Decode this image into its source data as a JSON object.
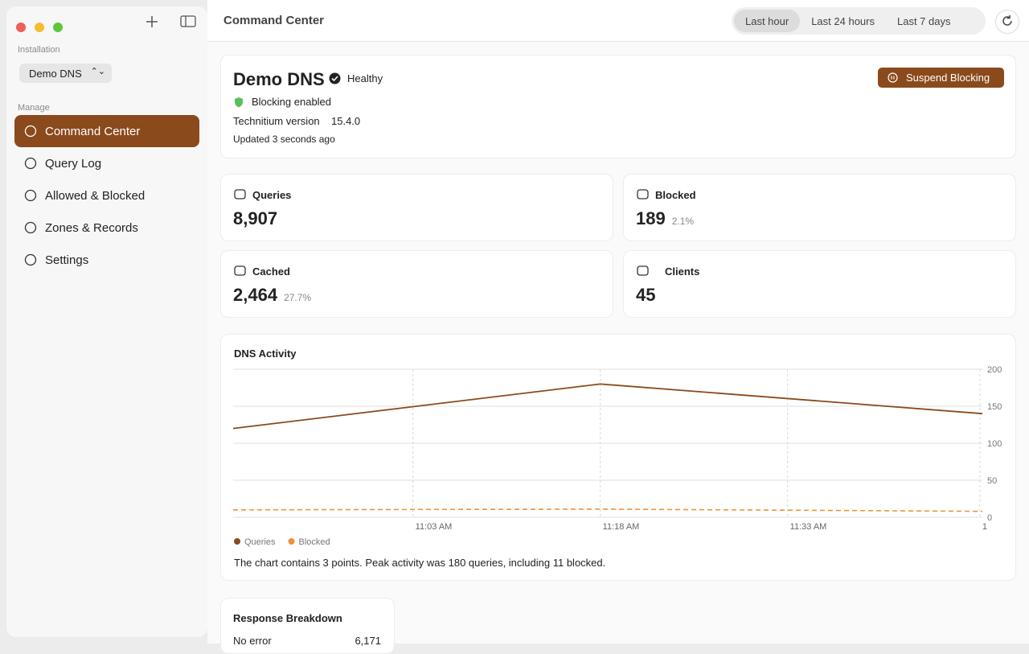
{
  "window": {
    "title": "Command Center"
  },
  "toolbar": {
    "ranges": [
      "Last hour",
      "Last 24 hours",
      "Last 7 days"
    ],
    "selected": 0
  },
  "sidebar": {
    "installation_label": "Installation",
    "installation": "Demo DNS",
    "section": "Manage",
    "items": [
      "Command Center",
      "Query Log",
      "Allowed & Blocked",
      "Zones & Records",
      "Settings"
    ],
    "selected": 0
  },
  "header": {
    "name": "Demo DNS",
    "status": "Healthy",
    "blocking": "Blocking enabled",
    "version_label": "Technitium version",
    "version": "15.4.0",
    "updated": "Updated 3 seconds ago",
    "action": "Suspend Blocking"
  },
  "stats": [
    {
      "label": "Queries",
      "value": "8,907"
    },
    {
      "label": "Blocked",
      "value": "189",
      "share": "2.1%"
    },
    {
      "label": "Cached",
      "value": "2,464",
      "share": "27.7%"
    },
    {
      "label": "Clients",
      "value": "45"
    }
  ],
  "chart_data": {
    "type": "line",
    "title": "DNS Activity",
    "x": [
      648.6,
      678,
      708.6
    ],
    "xlim": [
      648.6,
      708.6
    ],
    "xticks": [
      {
        "value": 663,
        "label": "11:03 AM"
      },
      {
        "value": 678,
        "label": "11:18 AM"
      },
      {
        "value": 693,
        "label": "11:33 AM"
      },
      {
        "value": 708.4,
        "label": "1"
      }
    ],
    "ylim": [
      0,
      200
    ],
    "yticks": [
      0,
      50,
      100,
      150,
      200
    ],
    "grid": true,
    "series": [
      {
        "name": "Queries",
        "color": "#8a4a1c",
        "values": [
          120,
          180,
          140
        ],
        "dashed": false
      },
      {
        "name": "Blocked",
        "color": "#f0913a",
        "values": [
          10,
          11,
          8
        ],
        "dashed": true
      }
    ],
    "caption": "The chart contains 3 points. Peak activity was 180 queries, including 11 blocked."
  },
  "breakdown": {
    "title": "Response Breakdown",
    "rows": [
      [
        "No error",
        "6,171"
      ]
    ]
  }
}
